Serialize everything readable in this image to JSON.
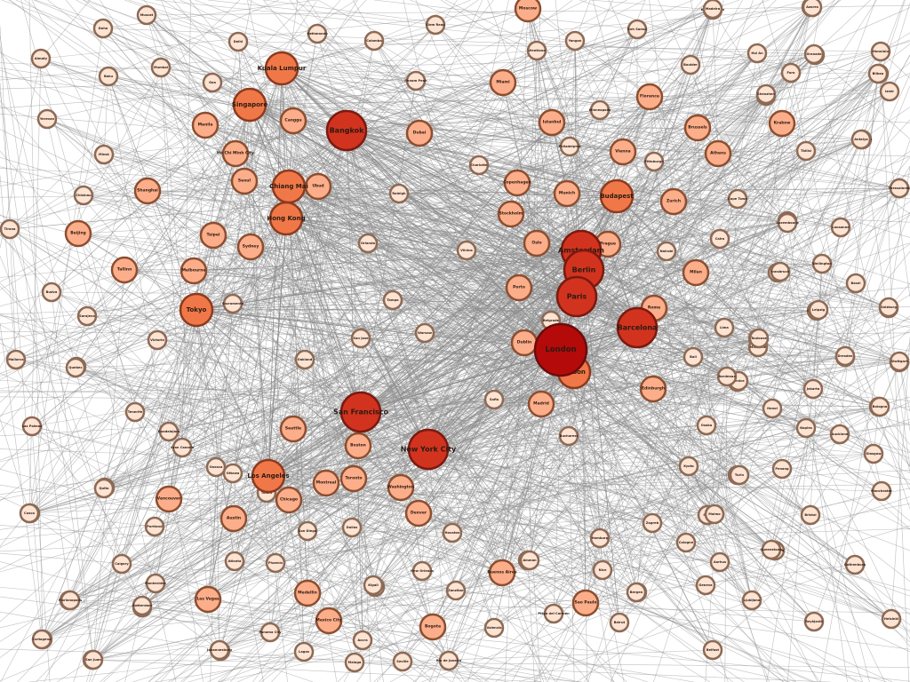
{
  "graph": {
    "type": "network",
    "colors": {
      "edge": "#8c8c8c",
      "tier1_fill": "#b50a0a",
      "tier1_stroke": "#6a0c0c",
      "tier2_fill": "#d2331f",
      "tier2_stroke": "#7a1a10",
      "tier3_fill": "#f07848",
      "tier3_stroke": "#8c3a1e",
      "tier4_fill": "#fcae8a",
      "tier4_stroke": "#8c4e30",
      "tier5_fill": "#fde3d2",
      "tier5_stroke": "#8c6a55"
    },
    "nodes": [
      {
        "label": "London",
        "tier": 1
      },
      {
        "label": "Bangkok",
        "tier": 2
      },
      {
        "label": "Amsterdam",
        "tier": 2
      },
      {
        "label": "Berlin",
        "tier": 2
      },
      {
        "label": "Paris",
        "tier": 2
      },
      {
        "label": "Barcelona",
        "tier": 2
      },
      {
        "label": "New York City",
        "tier": 2
      },
      {
        "label": "San Francisco",
        "tier": 2
      },
      {
        "label": "Chiang Mai",
        "tier": 3
      },
      {
        "label": "Hong Kong",
        "tier": 3
      },
      {
        "label": "Singapore",
        "tier": 3
      },
      {
        "label": "Kuala Lumpur",
        "tier": 3
      },
      {
        "label": "Budapest",
        "tier": 3
      },
      {
        "label": "Los Angeles",
        "tier": 3
      },
      {
        "label": "Tokyo",
        "tier": 3
      },
      {
        "label": "Lisbon",
        "tier": 3
      },
      {
        "label": "Prague",
        "tier": 4
      },
      {
        "label": "Rome",
        "tier": 4
      },
      {
        "label": "Dublin",
        "tier": 4
      },
      {
        "label": "Madrid",
        "tier": 4
      },
      {
        "label": "Ubud",
        "tier": 4
      },
      {
        "label": "Sydney",
        "tier": 4
      },
      {
        "label": "Canggu",
        "tier": 4
      },
      {
        "label": "Seoul",
        "tier": 4
      },
      {
        "label": "Ho Chi Minh City",
        "tier": 4
      },
      {
        "label": "Copenhagen",
        "tier": 4
      },
      {
        "label": "Stockholm",
        "tier": 4
      },
      {
        "label": "Munich",
        "tier": 4
      },
      {
        "label": "Vienna",
        "tier": 4
      },
      {
        "label": "Istanbul",
        "tier": 4
      },
      {
        "label": "Athens",
        "tier": 4
      },
      {
        "label": "Brussels",
        "tier": 4
      },
      {
        "label": "Milan",
        "tier": 4
      },
      {
        "label": "Zurich",
        "tier": 4
      },
      {
        "label": "Oslo",
        "tier": 4
      },
      {
        "label": "Edinburgh",
        "tier": 4
      },
      {
        "label": "Vancouver",
        "tier": 4
      },
      {
        "label": "Seattle",
        "tier": 4
      },
      {
        "label": "Austin",
        "tier": 4
      },
      {
        "label": "Chicago",
        "tier": 4
      },
      {
        "label": "Boston",
        "tier": 4
      },
      {
        "label": "Montreal",
        "tier": 4
      },
      {
        "label": "Toronto",
        "tier": 4
      },
      {
        "label": "Washington",
        "tier": 4
      },
      {
        "label": "Denver",
        "tier": 4
      },
      {
        "label": "Buenos Aires",
        "tier": 4
      },
      {
        "label": "Las Vegas",
        "tier": 4
      },
      {
        "label": "Mexico City",
        "tier": 4
      },
      {
        "label": "Shanghai",
        "tier": 4
      },
      {
        "label": "Beijing",
        "tier": 4
      },
      {
        "label": "Taipei",
        "tier": 4
      },
      {
        "label": "Melbourne",
        "tier": 4
      },
      {
        "label": "Manila",
        "tier": 4
      },
      {
        "label": "Dubai",
        "tier": 4
      },
      {
        "label": "Moscow",
        "tier": 4
      },
      {
        "label": "Florence",
        "tier": 4
      },
      {
        "label": "Krakow",
        "tier": 4
      },
      {
        "label": "Porto",
        "tier": 4
      },
      {
        "label": "Sao Paulo",
        "tier": 4
      },
      {
        "label": "Bogota",
        "tier": 4
      },
      {
        "label": "Medellin",
        "tier": 4
      },
      {
        "label": "Tallinn",
        "tier": 4
      },
      {
        "label": "Miami",
        "tier": 4
      },
      {
        "label": "Riga",
        "tier": 5
      },
      {
        "label": "Vilnius",
        "tier": 5
      },
      {
        "label": "Warsaw",
        "tier": 5
      },
      {
        "label": "Sofia",
        "tier": 5
      },
      {
        "label": "Bucharest",
        "tier": 5
      },
      {
        "label": "Belgrade",
        "tier": 5
      },
      {
        "label": "Zagreb",
        "tier": 5
      },
      {
        "label": "Split",
        "tier": 5
      },
      {
        "label": "Kyiv",
        "tier": 5
      },
      {
        "label": "Tbilisi",
        "tier": 5
      },
      {
        "label": "Cape Town",
        "tier": 5
      },
      {
        "label": "Nairobi",
        "tier": 5
      },
      {
        "label": "Cairo",
        "tier": 5
      },
      {
        "label": "Marrakech",
        "tier": 5
      },
      {
        "label": "Tel Aviv",
        "tier": 5
      },
      {
        "label": "Lima",
        "tier": 5
      },
      {
        "label": "Santiago",
        "tier": 5
      },
      {
        "label": "Phuket",
        "tier": 5
      },
      {
        "label": "Hanoi",
        "tier": 5
      },
      {
        "label": "Jakarta",
        "tier": 5
      },
      {
        "label": "Bali",
        "tier": 5
      },
      {
        "label": "Osaka",
        "tier": 5
      },
      {
        "label": "Kyoto",
        "tier": 5
      },
      {
        "label": "Da Nang",
        "tier": 5
      },
      {
        "label": "Penang",
        "tier": 5
      },
      {
        "label": "Auckland",
        "tier": 5
      },
      {
        "label": "Brisbane",
        "tier": 5
      },
      {
        "label": "Perth",
        "tier": 5
      },
      {
        "label": "Portland",
        "tier": 5
      },
      {
        "label": "San Diego",
        "tier": 5
      },
      {
        "label": "Ottawa",
        "tier": 5
      },
      {
        "label": "Phoenix",
        "tier": 5
      },
      {
        "label": "Atlanta",
        "tier": 5
      },
      {
        "label": "Dallas",
        "tier": 5
      },
      {
        "label": "Houston",
        "tier": 5
      },
      {
        "label": "Nashville",
        "tier": 5
      },
      {
        "label": "New Orleans",
        "tier": 5
      },
      {
        "label": "Calgary",
        "tier": 5
      },
      {
        "label": "Havana",
        "tier": 5
      },
      {
        "label": "Panama City",
        "tier": 5
      },
      {
        "label": "Cancun",
        "tier": 5
      },
      {
        "label": "Rio de Janeiro",
        "tier": 5
      },
      {
        "label": "Playa del Carmen",
        "tier": 5
      },
      {
        "label": "Valencia",
        "tier": 5
      },
      {
        "label": "Seville",
        "tier": 5
      },
      {
        "label": "Malaga",
        "tier": 5
      },
      {
        "label": "Nice",
        "tier": 5
      },
      {
        "label": "Lyon",
        "tier": 5
      },
      {
        "label": "Hamburg",
        "tier": 5
      },
      {
        "label": "Cologne",
        "tier": 5
      },
      {
        "label": "Frankfurt",
        "tier": 5
      },
      {
        "label": "Geneva",
        "tier": 5
      },
      {
        "label": "Ljubljana",
        "tier": 5
      },
      {
        "label": "Bratislava",
        "tier": 5
      },
      {
        "label": "Reykjavik",
        "tier": 5
      },
      {
        "label": "Helsinki",
        "tier": 5
      },
      {
        "label": "Gothenburg",
        "tier": 5
      },
      {
        "label": "Bristol",
        "tier": 5
      },
      {
        "label": "Manchester",
        "tier": 5
      },
      {
        "label": "Glasgow",
        "tier": 5
      },
      {
        "label": "Belfast",
        "tier": 5
      },
      {
        "label": "Cork",
        "tier": 5
      },
      {
        "label": "Antwerp",
        "tier": 5
      },
      {
        "label": "Rotterdam",
        "tier": 5
      },
      {
        "label": "Utrecht",
        "tier": 5
      },
      {
        "label": "Ghent",
        "tier": 5
      },
      {
        "label": "Valletta",
        "tier": 5
      },
      {
        "label": "Gran Canaria",
        "tier": 5
      },
      {
        "label": "Tenerife",
        "tier": 5
      },
      {
        "label": "Las Palmas",
        "tier": 5
      },
      {
        "label": "Ibiza",
        "tier": 5
      },
      {
        "label": "Mallorca",
        "tier": 5
      },
      {
        "label": "Sarajevo",
        "tier": 5
      },
      {
        "label": "Budva",
        "tier": 5
      },
      {
        "label": "Tirana",
        "tier": 5
      },
      {
        "label": "Chisinau",
        "tier": 5
      },
      {
        "label": "Minsk",
        "tier": 5
      },
      {
        "label": "Yerevan",
        "tier": 5
      },
      {
        "label": "Baku",
        "tier": 5
      },
      {
        "label": "Almaty",
        "tier": 5
      },
      {
        "label": "Doha",
        "tier": 5
      },
      {
        "label": "Muscat",
        "tier": 5
      },
      {
        "label": "Mumbai",
        "tier": 5
      },
      {
        "label": "Goa",
        "tier": 5
      },
      {
        "label": "Delhi",
        "tier": 5
      },
      {
        "label": "Kathmandu",
        "tier": 5
      },
      {
        "label": "Colombo",
        "tier": 5
      },
      {
        "label": "Siem Reap",
        "tier": 5
      },
      {
        "label": "Phnom Penh",
        "tier": 5
      },
      {
        "label": "Vientiane",
        "tier": 5
      },
      {
        "label": "Yangon",
        "tier": 5
      },
      {
        "label": "Koh Samui",
        "tier": 5
      },
      {
        "label": "Koh Phangan",
        "tier": 5
      },
      {
        "label": "Pai",
        "tier": 5
      },
      {
        "label": "Hoi An",
        "tier": 5
      },
      {
        "label": "Cebu",
        "tier": 5
      },
      {
        "label": "Boracay",
        "tier": 5
      },
      {
        "label": "Shenzhen",
        "tier": 5
      },
      {
        "label": "Guangzhou",
        "tier": 5
      },
      {
        "label": "Fukuoka",
        "tier": 5
      },
      {
        "label": "Busan",
        "tier": 5
      },
      {
        "label": "Wellington",
        "tier": 5
      },
      {
        "label": "Gold Coast",
        "tier": 5
      },
      {
        "label": "Adelaide",
        "tier": 5
      },
      {
        "label": "Byron Bay",
        "tier": 5
      },
      {
        "label": "Queenstown",
        "tier": 5
      },
      {
        "label": "Honolulu",
        "tier": 5
      },
      {
        "label": "Boulder",
        "tier": 5
      },
      {
        "label": "Salt Lake City",
        "tier": 5
      },
      {
        "label": "Minneapolis",
        "tier": 5
      },
      {
        "label": "Philadelphia",
        "tier": 5
      },
      {
        "label": "Pittsburgh",
        "tier": 5
      },
      {
        "label": "Charlotte",
        "tier": 5
      },
      {
        "label": "Raleigh",
        "tier": 5
      },
      {
        "label": "Orlando",
        "tier": 5
      },
      {
        "label": "Tampa",
        "tier": 5
      },
      {
        "label": "San Jose",
        "tier": 5
      },
      {
        "label": "Oakland",
        "tier": 5
      },
      {
        "label": "Sacramento",
        "tier": 5
      },
      {
        "label": "Victoria",
        "tier": 5
      },
      {
        "label": "Quebec",
        "tier": 5
      },
      {
        "label": "Guadalajara",
        "tier": 5
      },
      {
        "label": "Oaxaca",
        "tier": 5
      },
      {
        "label": "Tulum",
        "tier": 5
      },
      {
        "label": "Quito",
        "tier": 5
      },
      {
        "label": "Cusco",
        "tier": 5
      },
      {
        "label": "Montevideo",
        "tier": 5
      },
      {
        "label": "Florianopolis",
        "tier": 5
      },
      {
        "label": "Cartagena",
        "tier": 5
      },
      {
        "label": "San Juan",
        "tier": 5
      },
      {
        "label": "Johannesburg",
        "tier": 5
      },
      {
        "label": "Lagos",
        "tier": 5
      },
      {
        "label": "Accra",
        "tier": 5
      },
      {
        "label": "Kigali",
        "tier": 5
      },
      {
        "label": "Zanzibar",
        "tier": 5
      },
      {
        "label": "Dahab",
        "tier": 5
      },
      {
        "label": "Amman",
        "tier": 5
      },
      {
        "label": "Beirut",
        "tier": 5
      },
      {
        "label": "Bergen",
        "tier": 5
      },
      {
        "label": "Aarhus",
        "tier": 5
      },
      {
        "label": "Malmo",
        "tier": 5
      },
      {
        "label": "Turin",
        "tier": 5
      },
      {
        "label": "Naples",
        "tier": 5
      },
      {
        "label": "Bologna",
        "tier": 5
      },
      {
        "label": "Venice",
        "tier": 5
      },
      {
        "label": "Bordeaux",
        "tier": 5
      },
      {
        "label": "Marseille",
        "tier": 5
      },
      {
        "label": "Toulouse",
        "tier": 5
      },
      {
        "label": "Leipzig",
        "tier": 5
      },
      {
        "label": "Dresden",
        "tier": 5
      },
      {
        "label": "Stuttgart",
        "tier": 5
      },
      {
        "label": "Salzburg",
        "tier": 5
      },
      {
        "label": "Innsbruck",
        "tier": 5
      },
      {
        "label": "Basel",
        "tier": 5
      },
      {
        "label": "Lausanne",
        "tier": 5
      },
      {
        "label": "Luxembourg",
        "tier": 5
      },
      {
        "label": "Thessaloniki",
        "tier": 5
      },
      {
        "label": "Antalya",
        "tier": 5
      },
      {
        "label": "Izmir",
        "tier": 5
      },
      {
        "label": "Bilbao",
        "tier": 5
      },
      {
        "label": "Granada",
        "tier": 5
      },
      {
        "label": "Faro",
        "tier": 5
      },
      {
        "label": "Madeira",
        "tier": 5
      },
      {
        "label": "Azores",
        "tier": 5
      }
    ]
  }
}
